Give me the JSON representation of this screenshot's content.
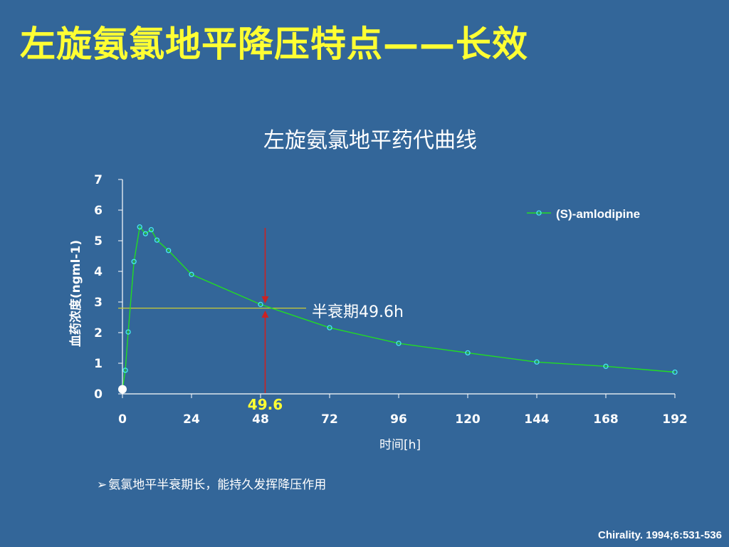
{
  "slide": {
    "title": "左旋氨氯地平降压特点——长效",
    "bullet_marker": "➢",
    "bullet": "氨氯地平半衰期长，能持久发挥降压作用",
    "citation": "Chirality. 1994;6:531-536"
  },
  "chart_data": {
    "type": "line",
    "title": "左旋氨氯地平药代曲线",
    "xlabel": "时间[h]",
    "ylabel": "血药浓度(ngml-1)",
    "xlim": [
      0,
      192
    ],
    "ylim": [
      0,
      7
    ],
    "xticks": [
      0,
      24,
      48,
      72,
      96,
      120,
      144,
      168,
      192
    ],
    "yticks": [
      0,
      1,
      2,
      3,
      4,
      5,
      6,
      7
    ],
    "grid": false,
    "legend_position": "top-right",
    "series": [
      {
        "name": "(S)-amlodipine",
        "color": "#22DD22",
        "marker_color": "#44EEEE",
        "x": [
          0,
          1,
          2,
          4,
          6,
          8,
          10,
          12,
          16,
          24,
          48,
          72,
          96,
          120,
          144,
          168,
          192
        ],
        "y": [
          0.15,
          0.77,
          2.02,
          4.32,
          5.45,
          5.23,
          5.36,
          5.02,
          4.68,
          3.9,
          2.92,
          2.16,
          1.65,
          1.34,
          1.04,
          0.9,
          0.71
        ]
      }
    ],
    "annotations": {
      "half_life_label": "半衰期49.6h",
      "half_life_x": 49.6,
      "half_life_level": 2.8,
      "half_life_axis_label": "49.6",
      "colors": {
        "hline": "#CCCC33",
        "vline": "#CC2222",
        "tick_text": "#FFFF33"
      }
    }
  }
}
